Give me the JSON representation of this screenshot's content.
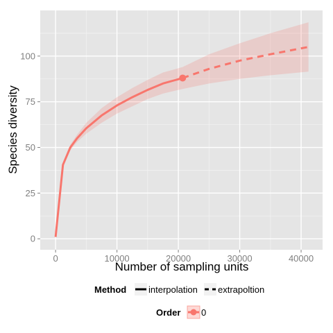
{
  "chart_data": {
    "type": "line",
    "title": "",
    "xlabel": "Number of sampling units",
    "ylabel": "Species diversity",
    "xlim": [
      -2500,
      43500
    ],
    "ylim": [
      -6,
      125
    ],
    "x_ticks": [
      0,
      10000,
      20000,
      30000,
      40000
    ],
    "x_tick_labels": [
      "0",
      "10000",
      "20000",
      "30000",
      "40000"
    ],
    "y_ticks": [
      0,
      25,
      50,
      75,
      100
    ],
    "y_tick_labels": [
      "0",
      "25",
      "50",
      "75",
      "100"
    ],
    "grid": true,
    "colors": {
      "line": "#F8766D",
      "ribbon": "#F8766D",
      "panel": "#E5E5E5",
      "grid_major": "#FFFFFF",
      "grid_minor": "#F2F2F2",
      "legend_key_bg": "#F2F2F2"
    },
    "series": [
      {
        "method": "interpolation",
        "x": [
          0,
          1200,
          2400,
          3500,
          5000,
          7500,
          10000,
          12500,
          15000,
          17500,
          20700
        ],
        "y": [
          1,
          40.5,
          50,
          55,
          60.5,
          67.5,
          73,
          77.5,
          81.5,
          85,
          88
        ],
        "lower": [
          1,
          40,
          48.5,
          53,
          57.5,
          63.5,
          68.5,
          72.5,
          76.5,
          79.5,
          82
        ],
        "upper": [
          1,
          41,
          51.5,
          57,
          63.5,
          71.5,
          77.5,
          82.5,
          87,
          91,
          94
        ]
      },
      {
        "method": "extrapoltion",
        "x": [
          20700,
          25000,
          30000,
          35000,
          41200
        ],
        "y": [
          88,
          93,
          97.5,
          101,
          105
        ],
        "lower": [
          82,
          85,
          87.5,
          89.5,
          91.5
        ],
        "upper": [
          94,
          101,
          107,
          112.5,
          118.5
        ]
      }
    ],
    "observed_point": {
      "x": 20700,
      "y": 88
    },
    "legend": {
      "position": "bottom",
      "method_title": "Method",
      "method_entries": [
        "interpolation",
        "extrapoltion"
      ],
      "order_title": "Order",
      "order_entries": [
        "0"
      ]
    }
  }
}
